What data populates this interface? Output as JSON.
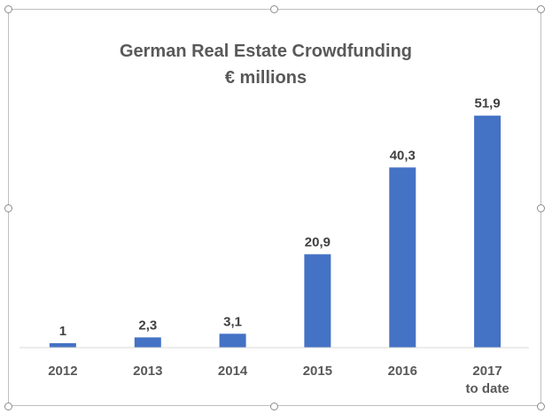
{
  "chart_data": {
    "type": "bar",
    "title": "German Real Estate Crowdfunding",
    "subtitle": "€ millions",
    "categories": [
      [
        "2012"
      ],
      [
        "2013"
      ],
      [
        "2014"
      ],
      [
        "2015"
      ],
      [
        "2016"
      ],
      [
        "2017",
        "to date"
      ]
    ],
    "values": [
      1,
      2.3,
      3.1,
      20.9,
      40.3,
      51.9
    ],
    "data_labels": [
      "1",
      "2,3",
      "3,1",
      "20,9",
      "40,3",
      "51,9"
    ],
    "xlabel": "",
    "ylabel": "",
    "ylim": [
      0,
      55
    ],
    "grid": false,
    "bar_color": "#4472c4"
  }
}
